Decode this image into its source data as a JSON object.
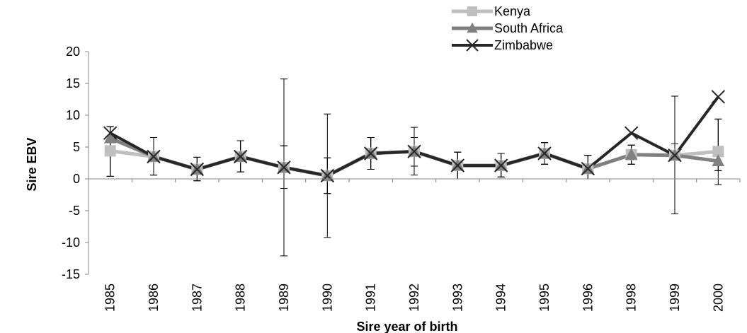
{
  "chart_data": {
    "type": "line",
    "title": "",
    "xlabel": "Sire year of birth",
    "ylabel": "Sire EBV",
    "ylim": [
      -15,
      20
    ],
    "yticks": [
      -15,
      -10,
      -5,
      0,
      5,
      10,
      15,
      20
    ],
    "categories": [
      "1985",
      "1986",
      "1987",
      "1988",
      "1989",
      "1990",
      "1991",
      "1992",
      "1993",
      "1994",
      "1995",
      "1996",
      "1998",
      "1999",
      "2000"
    ],
    "legend_position": "top-right",
    "grid": false,
    "series": [
      {
        "name": "Kenya",
        "color": "#bfbfbf",
        "marker": "square",
        "values": [
          4.4,
          3.5,
          1.5,
          3.5,
          1.8,
          0.5,
          4.0,
          4.3,
          2.1,
          2.1,
          4.0,
          1.6,
          3.8,
          3.7,
          4.3
        ],
        "err_low": [
          0.4,
          0.6,
          -0.3,
          1.1,
          -12.1,
          -9.2,
          1.5,
          0.6,
          0.0,
          0.3,
          2.3,
          0.0,
          2.3,
          0.0,
          -0.9
        ],
        "err_high": [
          8.2,
          6.5,
          3.4,
          6.0,
          15.7,
          10.2,
          6.5,
          8.1,
          4.2,
          4.0,
          5.7,
          3.7,
          5.3,
          13.0,
          9.4
        ]
      },
      {
        "name": "South Africa",
        "color": "#808080",
        "marker": "triangle",
        "values": [
          6.4,
          3.5,
          1.5,
          3.5,
          1.8,
          0.5,
          4.0,
          4.3,
          2.1,
          2.1,
          4.0,
          1.6,
          3.8,
          3.7,
          2.8
        ],
        "err_low": [
          0.4,
          0.6,
          -0.3,
          1.1,
          -1.5,
          -2.3,
          1.5,
          2.0,
          0.0,
          0.3,
          2.3,
          0.0,
          2.3,
          0.0,
          1.3
        ],
        "err_high": [
          8.2,
          6.5,
          3.4,
          6.0,
          5.2,
          3.3,
          6.5,
          6.5,
          4.2,
          4.0,
          5.7,
          3.7,
          5.3,
          5.5,
          9.4
        ]
      },
      {
        "name": "Zimbabwe",
        "color": "#262626",
        "marker": "x",
        "values": [
          7.2,
          3.5,
          1.5,
          3.5,
          1.8,
          0.5,
          4.0,
          4.3,
          2.1,
          2.1,
          4.0,
          1.6,
          7.2,
          3.7,
          12.9
        ],
        "err_low": [
          0.4,
          0.6,
          -0.3,
          1.1,
          -1.5,
          -2.3,
          1.5,
          2.0,
          0.0,
          0.3,
          2.3,
          0.0,
          2.3,
          -5.5,
          1.3
        ],
        "err_high": [
          8.2,
          6.5,
          3.4,
          6.0,
          5.2,
          3.3,
          6.5,
          6.5,
          4.2,
          4.0,
          5.7,
          3.7,
          5.3,
          13.0,
          9.4
        ]
      }
    ]
  }
}
